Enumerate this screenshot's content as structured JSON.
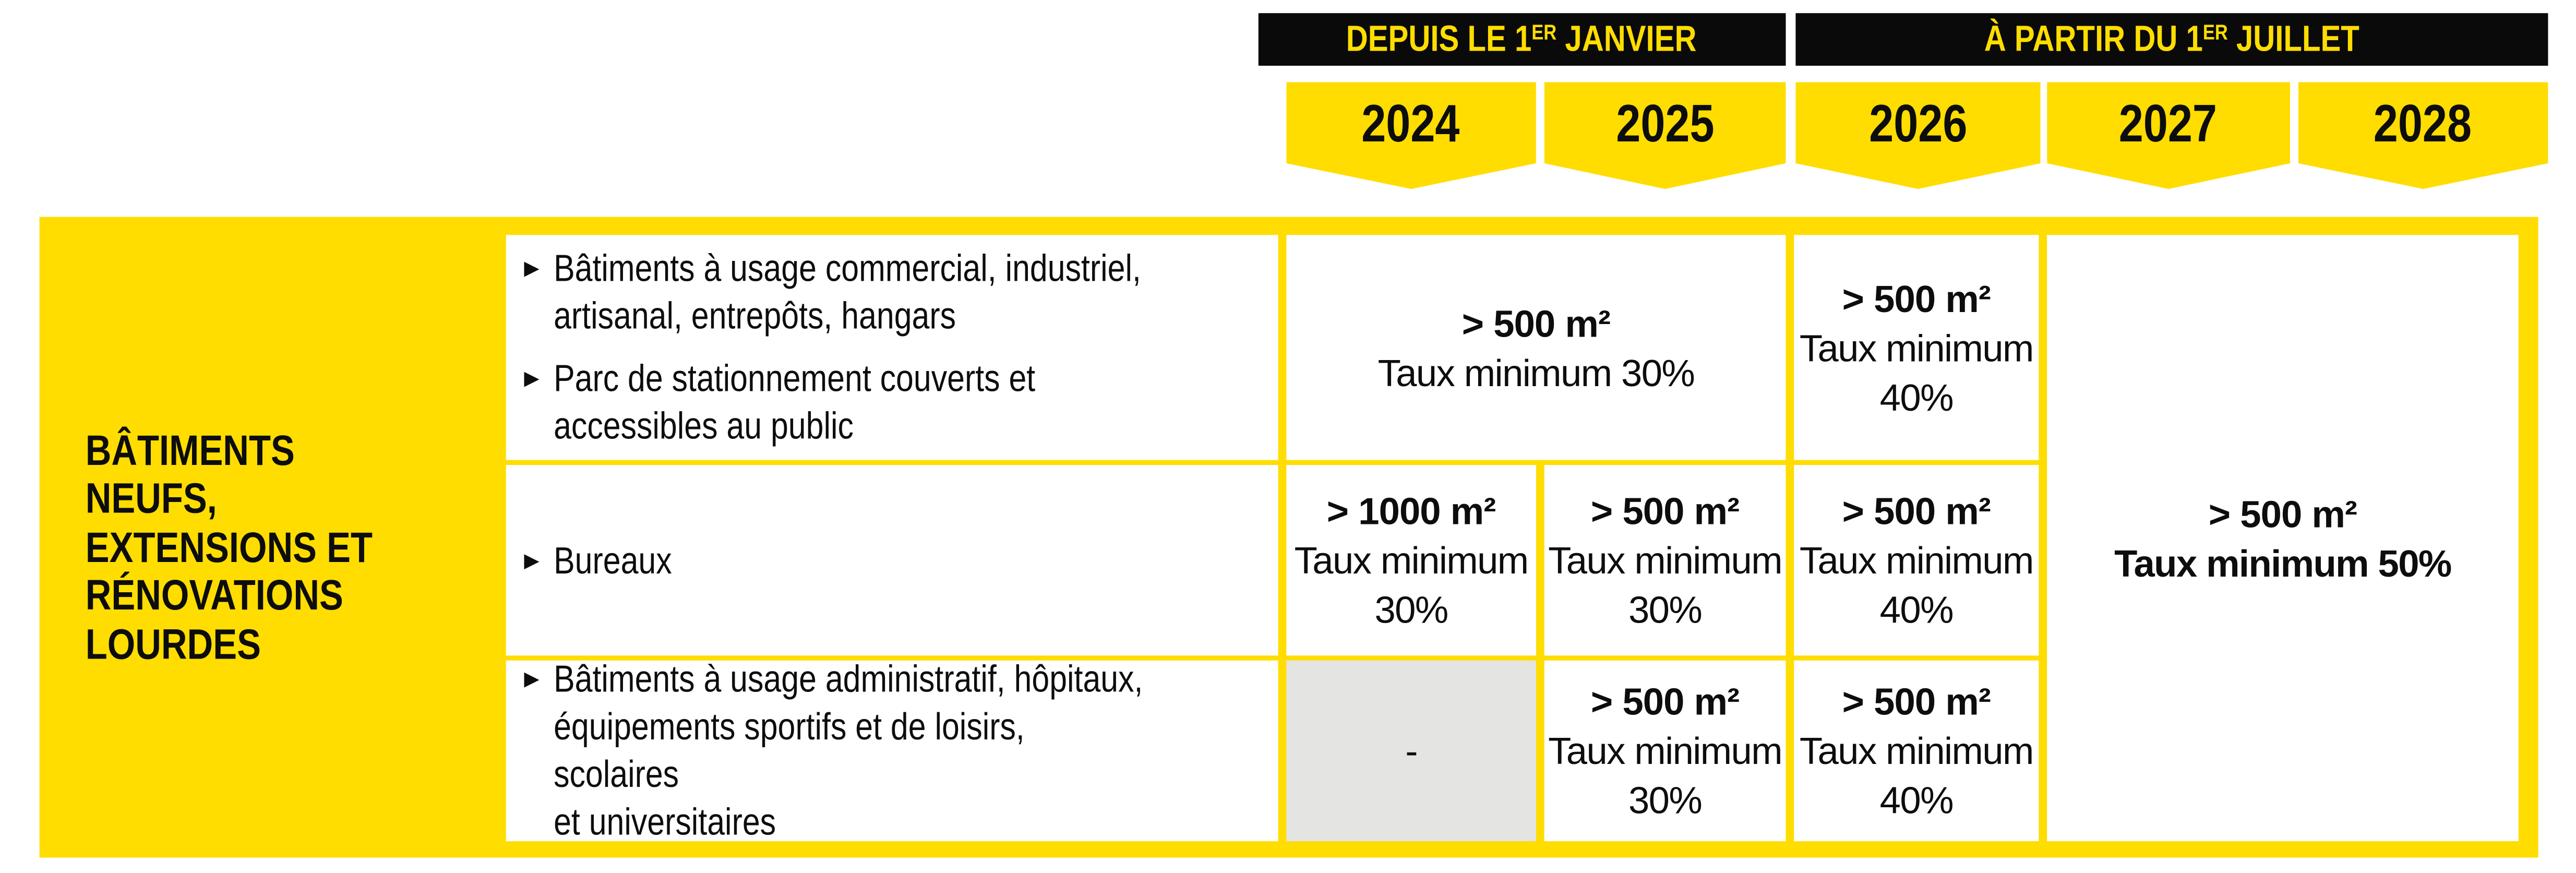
{
  "colors": {
    "yellow": "#FFDD00",
    "band_black": "#0A0A0A",
    "text_black": "#0D0D0D",
    "gray_cell": "#E4E4E2",
    "white": "#FFFFFF"
  },
  "header": {
    "period1": {
      "prefix": "DEPUIS LE 1",
      "sup": "ER",
      "suffix": " JANVIER"
    },
    "period2": {
      "prefix": "À PARTIR DU 1",
      "sup": "ER",
      "suffix": " JUILLET"
    },
    "years": [
      "2024",
      "2025",
      "2026",
      "2027",
      "2028"
    ]
  },
  "table": {
    "bullet_glyph": "▶",
    "row_group_label": "BÂTIMENTS NEUFS,\nEXTENSIONS ET\nRÉNOVATIONS\nLOURDES",
    "categories": {
      "row1_item1": "Bâtiments à usage commercial, industriel,\nartisanal, entrepôts, hangars",
      "row1_item2": "Parc de stationnement couverts et\naccessibles au public",
      "row2_item1": "Bureaux",
      "row3_item1": "Bâtiments à usage administratif, hôpitaux,\néquipements sportifs et de loisirs, scolaires\net universitaires"
    },
    "cells": {
      "r1_y2024_2025": {
        "size": "> 500 m²",
        "rate": "Taux minimum 30%"
      },
      "r1_y2026": {
        "size": "> 500 m²",
        "rate": "Taux minimum\n40%"
      },
      "r2_y2024": {
        "size": "> 1000 m²",
        "rate": "Taux minimum\n30%"
      },
      "r2_y2025": {
        "size": "> 500 m²",
        "rate": "Taux minimum\n30%"
      },
      "r2_y2026": {
        "size": "> 500 m²",
        "rate": "Taux minimum\n40%"
      },
      "r3_y2024_dash": "-",
      "r3_y2025": {
        "size": "> 500 m²",
        "rate": "Taux minimum\n30%"
      },
      "r3_y2026": {
        "size": "> 500 m²",
        "rate": "Taux minimum\n40%"
      },
      "r1to3_y2027_2028": {
        "size": "> 500 m²",
        "rate": "Taux minimum 50%"
      }
    }
  },
  "chart_data": {
    "type": "table",
    "title": "Obligations de solarisation — bâtiments neufs, extensions et rénovations lourdes",
    "column_groups": [
      {
        "label": "DEPUIS LE 1ER JANVIER",
        "years": [
          "2024",
          "2025"
        ]
      },
      {
        "label": "À PARTIR DU 1ER JUILLET",
        "years": [
          "2026",
          "2027",
          "2028"
        ]
      }
    ],
    "row_group": "BÂTIMENTS NEUFS, EXTENSIONS ET RÉNOVATIONS LOURDES",
    "rows": [
      {
        "category": "Bâtiments à usage commercial, industriel, artisanal, entrepôts, hangars ; Parc de stationnement couverts et accessibles au public",
        "values": {
          "2024": "> 500 m² Taux minimum 30%",
          "2025": "> 500 m² Taux minimum 30%",
          "2026": "> 500 m² Taux minimum 40%",
          "2027": "> 500 m² Taux minimum 50%",
          "2028": "> 500 m² Taux minimum 50%"
        }
      },
      {
        "category": "Bureaux",
        "values": {
          "2024": "> 1000 m² Taux minimum 30%",
          "2025": "> 500 m² Taux minimum 30%",
          "2026": "> 500 m² Taux minimum 40%",
          "2027": "> 500 m² Taux minimum 50%",
          "2028": "> 500 m² Taux minimum 50%"
        }
      },
      {
        "category": "Bâtiments à usage administratif, hôpitaux, équipements sportifs et de loisirs, scolaires et universitaires",
        "values": {
          "2024": "-",
          "2025": "> 500 m² Taux minimum 30%",
          "2026": "> 500 m² Taux minimum 40%",
          "2027": "> 500 m² Taux minimum 50%",
          "2028": "> 500 m² Taux minimum 50%"
        }
      }
    ]
  }
}
